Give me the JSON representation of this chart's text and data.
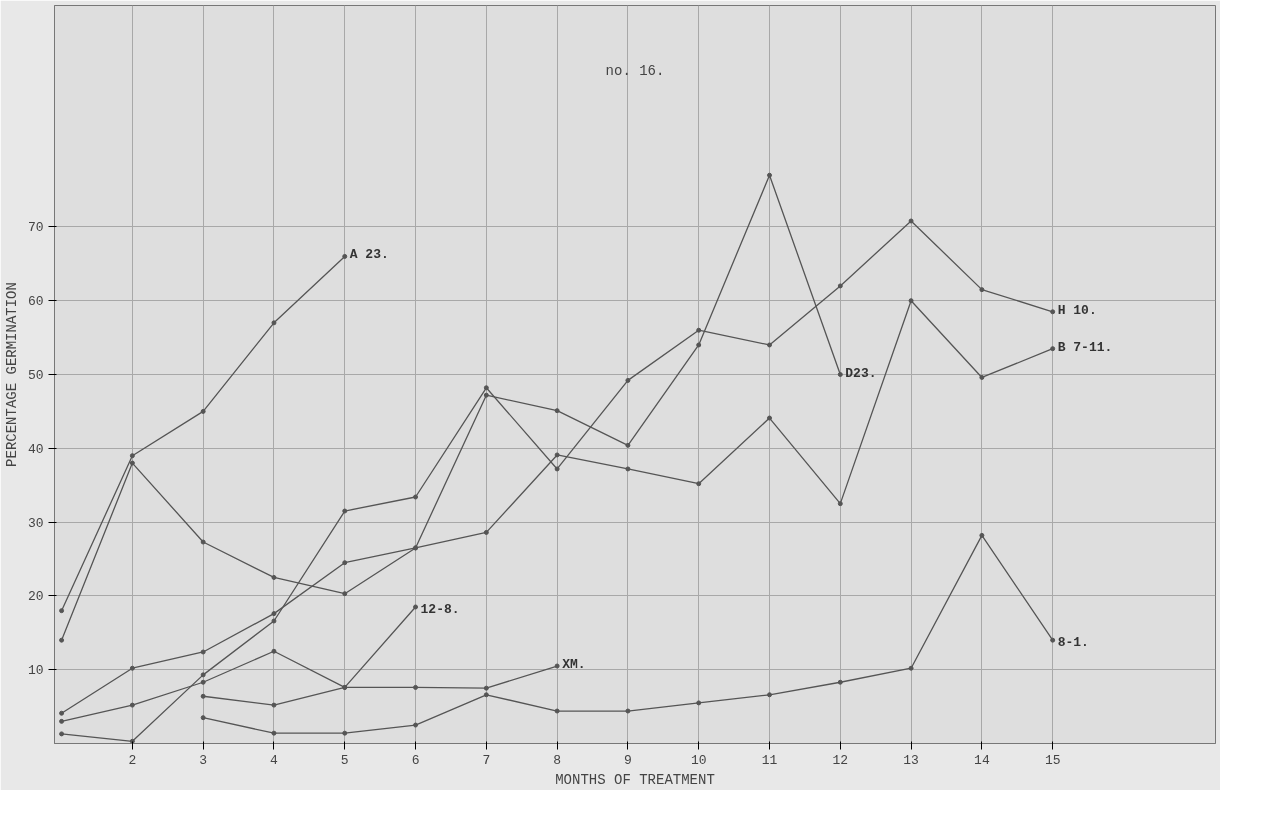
{
  "chart_data": {
    "type": "line",
    "title": "no. 16.",
    "xlabel": "MONTHS OF TREATMENT",
    "ylabel": "PERCENTAGE GERMINATION",
    "xlim": [
      0.9,
      17.3
    ],
    "xticks": [
      2,
      3,
      4,
      5,
      6,
      7,
      8,
      9,
      10,
      11,
      12,
      13,
      14,
      15
    ],
    "ylim": [
      0,
      100
    ],
    "yticks": [
      10,
      20,
      30,
      40,
      50,
      60,
      70
    ],
    "grid": true,
    "legend": false,
    "marker": "circle",
    "line_style": "solid",
    "series": [
      {
        "name": "A 23.",
        "color": "#555555",
        "x": [
          1,
          2,
          3,
          4,
          5
        ],
        "values": [
          18,
          39,
          45,
          57,
          66
        ]
      },
      {
        "name": "D23.",
        "color": "#555555",
        "x": [
          1,
          2,
          3,
          4,
          5,
          6,
          7,
          8,
          9,
          10,
          11,
          12
        ],
        "values": [
          14,
          38,
          27.3,
          22.5,
          20.3,
          26.5,
          47.2,
          45.1,
          40.4,
          54,
          77,
          50
        ]
      },
      {
        "name": "H 10.",
        "color": "#555555",
        "x": [
          1,
          2,
          3,
          4,
          5,
          6,
          7,
          8,
          9,
          10,
          11,
          12,
          13,
          14,
          15
        ],
        "values": [
          1.3,
          0.3,
          9.3,
          16.6,
          31.5,
          33.4,
          48.2,
          37.2,
          49.2,
          56,
          54,
          62,
          70.8,
          61.5,
          58.5
        ]
      },
      {
        "name": "B 7-11.",
        "color": "#555555",
        "x": [
          1,
          2,
          3,
          4,
          5,
          6,
          7,
          8,
          9,
          10,
          11,
          12,
          13,
          14,
          15
        ],
        "values": [
          4.1,
          10.2,
          12.4,
          17.6,
          24.5,
          26.5,
          28.6,
          39.1,
          37.2,
          35.2,
          44.1,
          32.5,
          60,
          49.6,
          53.5
        ]
      },
      {
        "name": "12-8.",
        "color": "#555555",
        "x": [
          1,
          2,
          3,
          4,
          5,
          6
        ],
        "values": [
          3,
          5.2,
          8.3,
          12.5,
          7.6,
          18.5
        ]
      },
      {
        "name": "XM.",
        "color": "#555555",
        "x": [
          3,
          4,
          5,
          6,
          7,
          8
        ],
        "values": [
          6.4,
          5.2,
          7.6,
          7.6,
          7.5,
          10.5
        ]
      },
      {
        "name": "8-1.",
        "color": "#555555",
        "x": [
          3,
          4,
          5,
          6,
          7,
          8,
          9,
          10,
          11,
          12,
          13,
          14,
          15
        ],
        "values": [
          3.5,
          1.4,
          1.4,
          2.5,
          6.6,
          4.4,
          4.4,
          5.5,
          6.6,
          8.3,
          10.2,
          28.2,
          14
        ]
      }
    ]
  }
}
